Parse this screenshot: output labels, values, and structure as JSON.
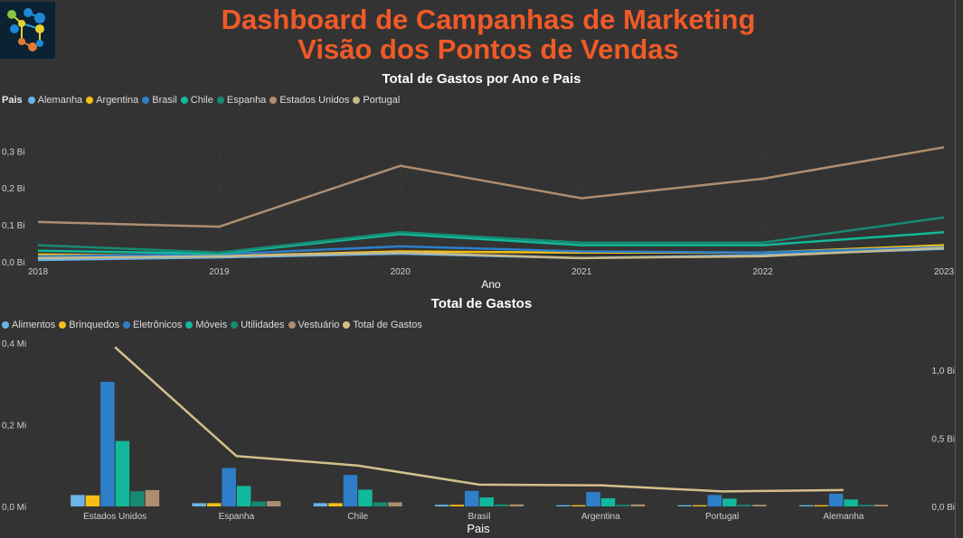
{
  "header": {
    "title_line1": "Dashboard de Campanhas de Marketing",
    "title_line2": "Visão dos Pontos de Vendas"
  },
  "colors": {
    "title": "#f05a28",
    "Alemanha": "#6cb4e6",
    "Argentina": "#f5c015",
    "Brasil": "#2e7ec9",
    "Chile": "#12b89b",
    "Espanha": "#178a72",
    "Estados Unidos": "#ae8e70",
    "Portugal": "#c8b88a",
    "Alimentos": "#6cb4e6",
    "Brinquedos": "#f5c015",
    "Eletrônicos": "#2e7ec9",
    "Móveis": "#12b89b",
    "Utilidades": "#178a72",
    "Vestuário": "#ae8e70",
    "Total de Gastos": "#d4c08a"
  },
  "chart1": {
    "title": "Total de Gastos por Ano e Pais",
    "legend_title": "Pais",
    "legend": [
      "Alemanha",
      "Argentina",
      "Brasil",
      "Chile",
      "Espanha",
      "Estados Unidos",
      "Portugal"
    ],
    "xlabel": "Ano"
  },
  "chart2": {
    "title": "Total de Gastos",
    "legend": [
      "Alimentos",
      "Brinquedos",
      "Eletrônicos",
      "Móveis",
      "Utilidades",
      "Vestuário",
      "Total de Gastos"
    ],
    "xlabel": "Pais"
  },
  "chart_data": [
    {
      "type": "line",
      "title": "Total de Gastos por Ano e Pais",
      "xlabel": "Ano",
      "x": [
        "2018",
        "2019",
        "2020",
        "2021",
        "2022",
        "2023"
      ],
      "yticks": [
        "0,0 Bi",
        "0,1 Bi",
        "0,2 Bi",
        "0,3 Bi"
      ],
      "ylim": [
        0,
        0.33
      ],
      "series": [
        {
          "name": "Alemanha",
          "values": [
            0.005,
            0.012,
            0.022,
            0.01,
            0.018,
            0.035
          ]
        },
        {
          "name": "Argentina",
          "values": [
            0.02,
            0.015,
            0.028,
            0.025,
            0.025,
            0.045
          ]
        },
        {
          "name": "Brasil",
          "values": [
            0.015,
            0.02,
            0.042,
            0.028,
            0.025,
            0.04
          ]
        },
        {
          "name": "Chile",
          "values": [
            0.03,
            0.022,
            0.075,
            0.045,
            0.045,
            0.08
          ]
        },
        {
          "name": "Espanha",
          "values": [
            0.045,
            0.025,
            0.08,
            0.052,
            0.052,
            0.12
          ]
        },
        {
          "name": "Estados Unidos",
          "values": [
            0.108,
            0.095,
            0.26,
            0.172,
            0.225,
            0.31
          ]
        },
        {
          "name": "Portugal",
          "values": [
            0.01,
            0.015,
            0.025,
            0.01,
            0.015,
            0.038
          ]
        }
      ]
    },
    {
      "type": "bar",
      "title": "Total de Gastos",
      "xlabel": "Pais",
      "categories": [
        "Estados Unidos",
        "Espanha",
        "Chile",
        "Brasil",
        "Argentina",
        "Portugal",
        "Alemanha"
      ],
      "yticks_left": [
        "0,0 Mi",
        "0,2 Mi",
        "0,4 Mi"
      ],
      "yticks_right": [
        "0,0 Bi",
        "0,5 Bi",
        "1,0 Bi"
      ],
      "ylim_left": [
        0,
        0.4
      ],
      "ylim_right": [
        0,
        1.2
      ],
      "series": [
        {
          "name": "Alimentos",
          "values": [
            0.028,
            0.008,
            0.008,
            0.004,
            0.003,
            0.003,
            0.003
          ]
        },
        {
          "name": "Brinquedos",
          "values": [
            0.027,
            0.008,
            0.008,
            0.004,
            0.003,
            0.003,
            0.003
          ]
        },
        {
          "name": "Eletrônicos",
          "values": [
            0.305,
            0.094,
            0.077,
            0.038,
            0.035,
            0.028,
            0.031
          ]
        },
        {
          "name": "Móveis",
          "values": [
            0.16,
            0.05,
            0.041,
            0.022,
            0.02,
            0.019,
            0.017
          ]
        },
        {
          "name": "Utilidades",
          "values": [
            0.037,
            0.012,
            0.01,
            0.005,
            0.004,
            0.004,
            0.004
          ]
        },
        {
          "name": "Vestuário",
          "values": [
            0.04,
            0.013,
            0.01,
            0.005,
            0.005,
            0.004,
            0.004
          ]
        }
      ],
      "line_series": {
        "name": "Total de Gastos",
        "values": [
          1.17,
          0.37,
          0.3,
          0.16,
          0.155,
          0.11,
          0.12
        ]
      }
    }
  ]
}
